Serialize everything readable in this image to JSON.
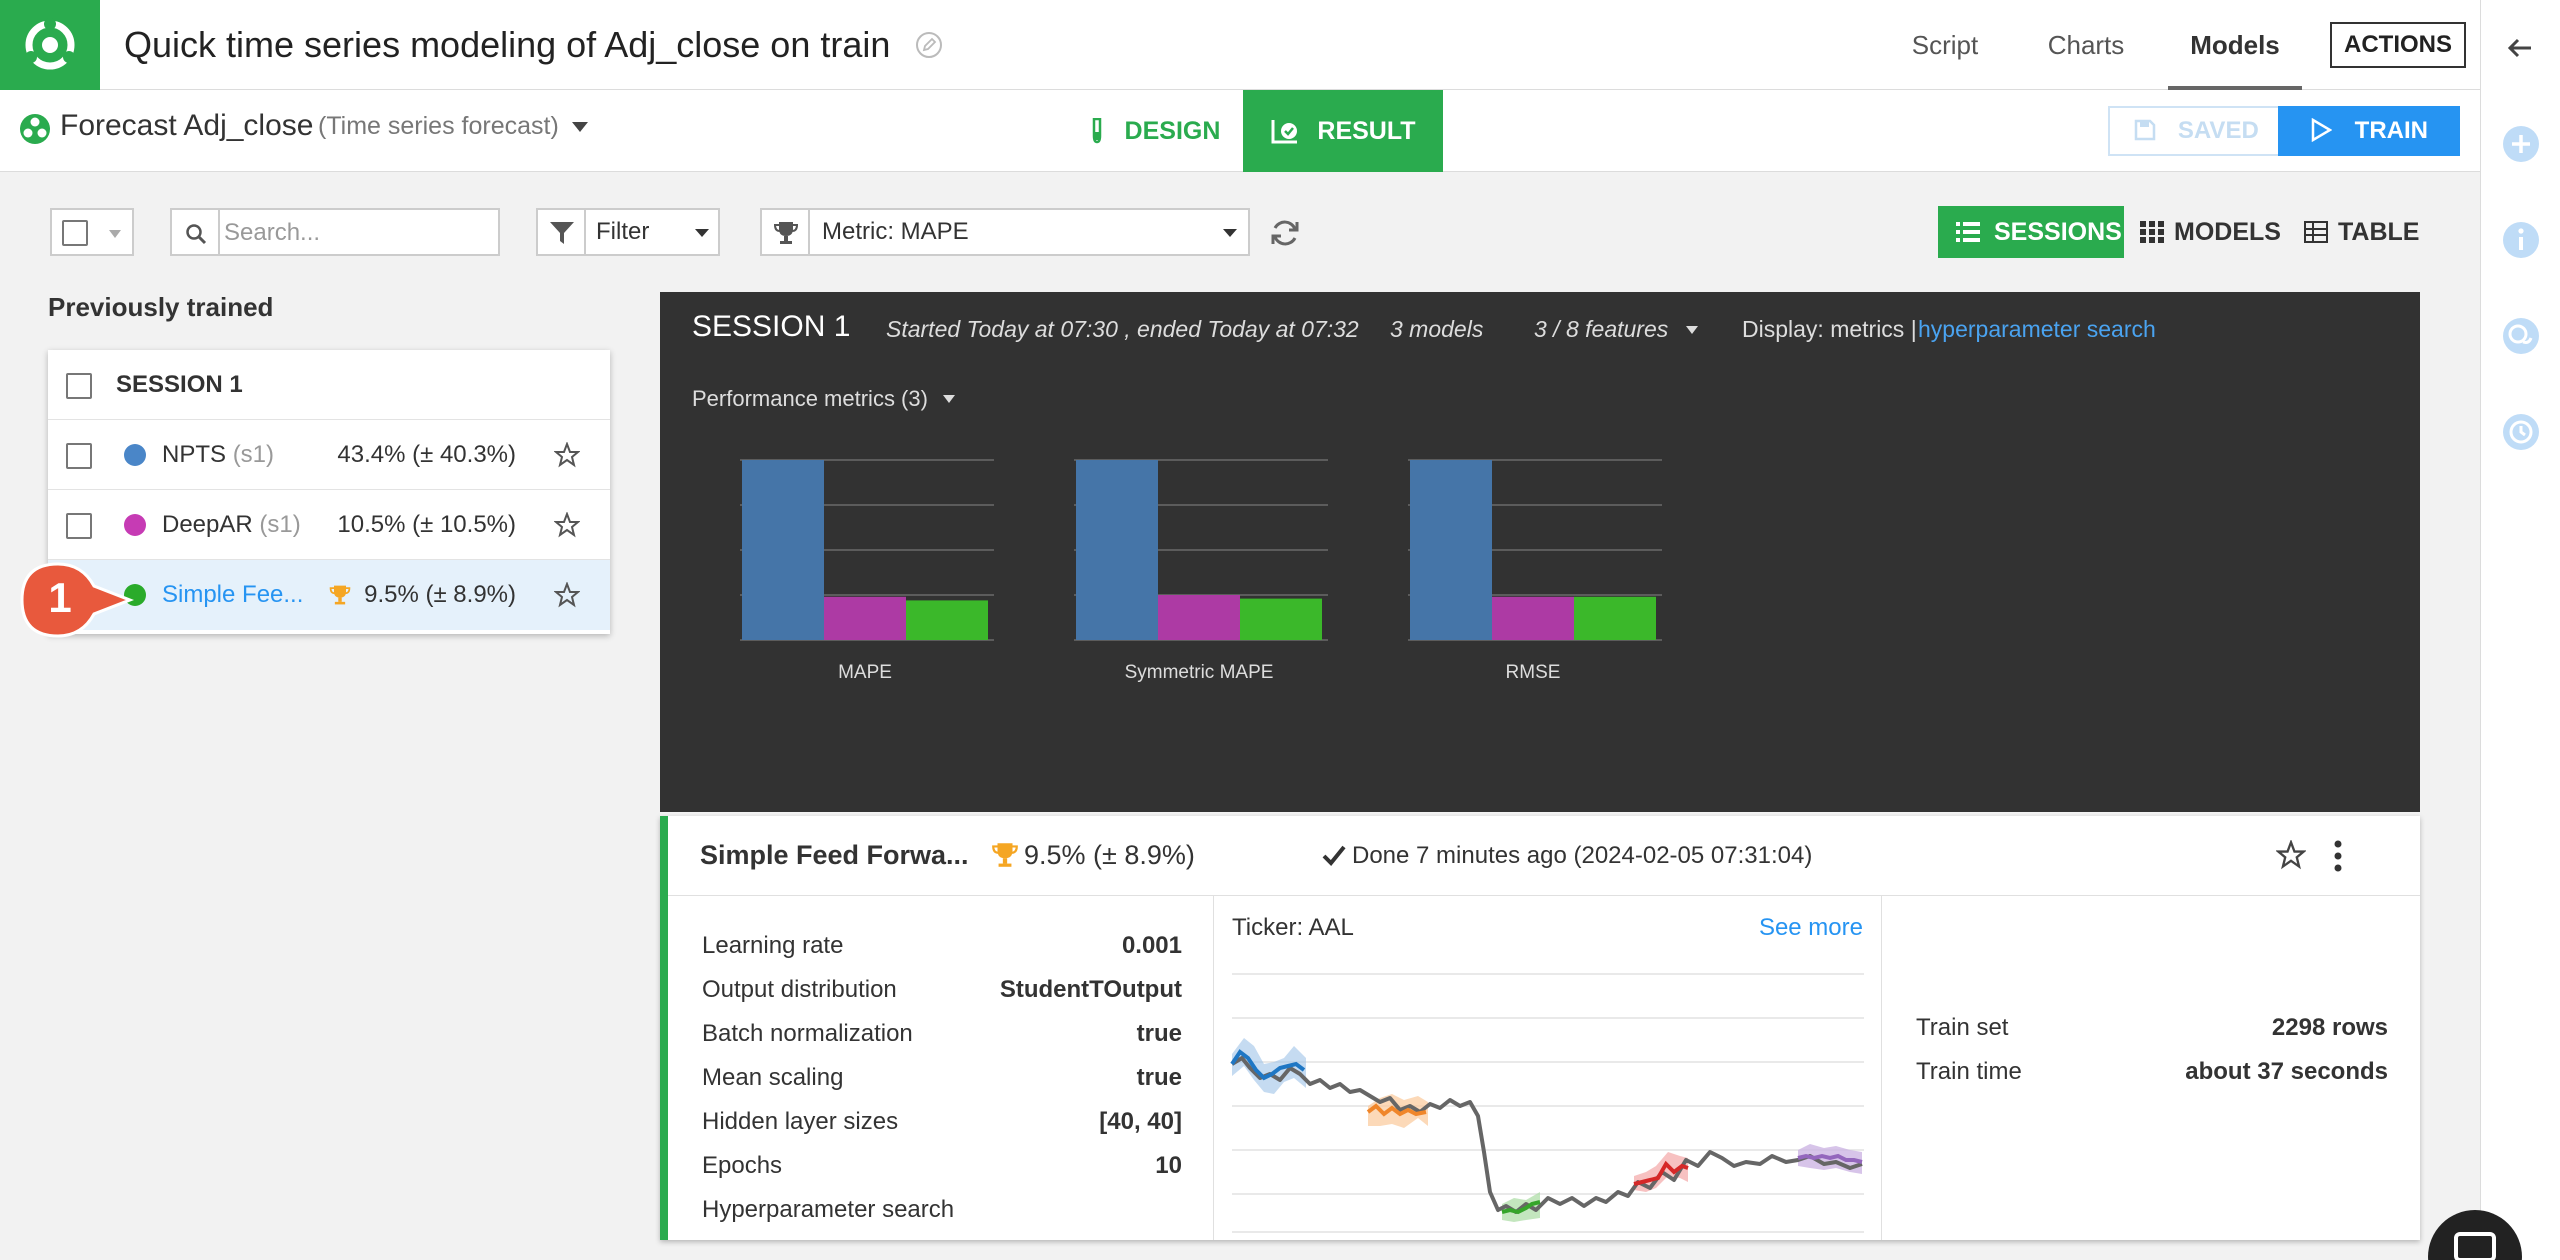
{
  "header": {
    "title": "Quick time series modeling of Adj_close on train",
    "nav": {
      "script": "Script",
      "charts": "Charts",
      "models": "Models"
    },
    "actions_label": "ACTIONS"
  },
  "subheader": {
    "forecast_name": "Forecast Adj_close",
    "forecast_type": "(Time series forecast)",
    "design_label": "DESIGN",
    "result_label": "RESULT",
    "saved_label": "SAVED",
    "train_label": "TRAIN"
  },
  "toolbar": {
    "search_placeholder": "Search...",
    "filter_label": "Filter",
    "metric_label": "Metric: MAPE",
    "sessions_label": "SESSIONS",
    "models_label": "MODELS",
    "table_label": "TABLE"
  },
  "sidebar": {
    "title": "Previously trained",
    "session_label": "SESSION 1",
    "models": [
      {
        "name": "NPTS",
        "session": "(s1)",
        "score": "43.4% (± 40.3%)",
        "color": "#4a86c8"
      },
      {
        "name": "DeepAR",
        "session": "(s1)",
        "score": "10.5% (± 10.5%)",
        "color": "#c63bb4"
      },
      {
        "name": "Simple Fee...",
        "session": "",
        "score": "9.5% (± 8.9%)",
        "color": "#2aab2a"
      }
    ],
    "annotation": "1"
  },
  "session": {
    "title": "SESSION 1",
    "timing": "Started Today at 07:30 , ended Today at 07:32",
    "model_count": "3 models",
    "features": "3 / 8 features",
    "display_label": "Display: metrics |",
    "hyperparameter_link": "hyperparameter search",
    "perf_label": "Performance metrics (3)"
  },
  "chart_data": {
    "type": "bar",
    "categories": [
      "MAPE",
      "Symmetric MAPE",
      "RMSE"
    ],
    "series": [
      {
        "name": "NPTS",
        "color": "#4575a8",
        "values": [
          1.0,
          1.0,
          1.0
        ]
      },
      {
        "name": "DeepAR",
        "color": "#ad3aa4",
        "values": [
          0.24,
          0.25,
          0.24
        ]
      },
      {
        "name": "Simple Feed Forward",
        "color": "#3bb82a",
        "values": [
          0.22,
          0.23,
          0.24
        ]
      }
    ],
    "ylim": [
      0,
      1.0
    ],
    "grid": true,
    "legend": "none"
  },
  "detail": {
    "name": "Simple Feed Forwa...",
    "score": "9.5% (± 8.9%)",
    "status": "Done 7 minutes ago (2024-02-05 07:31:04)",
    "params": [
      {
        "label": "Learning rate",
        "value": "0.001"
      },
      {
        "label": "Output distribution",
        "value": "StudentTOutput"
      },
      {
        "label": "Batch normalization",
        "value": "true"
      },
      {
        "label": "Mean scaling",
        "value": "true"
      },
      {
        "label": "Hidden layer sizes",
        "value": "[40, 40]"
      },
      {
        "label": "Epochs",
        "value": "10"
      },
      {
        "label": "Hyperparameter search",
        "value": ""
      }
    ],
    "ticker": "Ticker: AAL",
    "see_more": "See more",
    "train_set_label": "Train set",
    "train_set_value": "2298 rows",
    "train_time_label": "Train time",
    "train_time_value": "about 37 seconds"
  },
  "colors": {
    "brand_green": "#2aab4e",
    "accent_blue": "#2694f2",
    "panel_dark": "#323232"
  }
}
